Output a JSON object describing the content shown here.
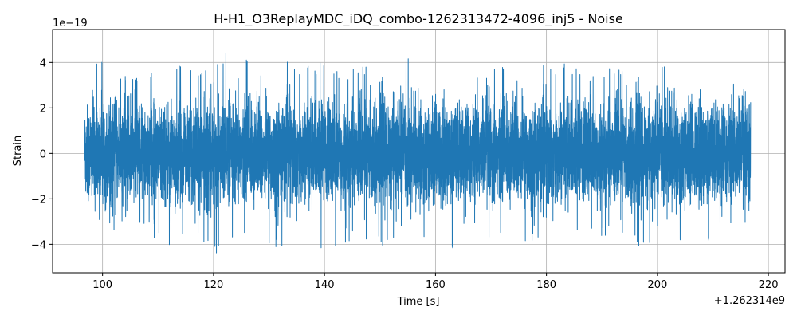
{
  "chart_data": {
    "type": "line",
    "title": "H-H1_O3ReplayMDC_iDQ_combo-1262313472-4096_inj5 - Noise",
    "xlabel": "Time [s]",
    "ylabel": "Strain",
    "x_offset_label": "+1.262314e9",
    "y_scale_label": "1e−19",
    "xlim": [
      91,
      223
    ],
    "ylim": [
      -5.25,
      5.45
    ],
    "x_ticks": [
      100,
      120,
      140,
      160,
      180,
      200,
      220
    ],
    "x_tick_labels": [
      "100",
      "120",
      "140",
      "160",
      "180",
      "200",
      "220"
    ],
    "y_ticks": [
      -4,
      -2,
      0,
      2,
      4
    ],
    "y_tick_labels": [
      "−4",
      "−2",
      "0",
      "2",
      "4"
    ],
    "grid": true,
    "series": [
      {
        "color": "#1f77b4",
        "x_start": 96.8,
        "x_end": 216.8,
        "envelope_x": [
          96.8,
          100,
          104,
          108,
          112,
          116,
          120,
          124,
          128,
          132,
          136,
          140,
          144,
          148,
          152,
          156,
          160,
          164,
          168,
          172,
          176,
          180,
          184,
          188,
          192,
          196,
          200,
          204,
          208,
          212,
          216.8
        ],
        "envelope_max": [
          4.3,
          4.35,
          3.6,
          3.5,
          3.7,
          4.0,
          4.0,
          4.85,
          4.0,
          4.1,
          3.9,
          4.4,
          3.6,
          4.1,
          4.35,
          4.45,
          4.2,
          4.25,
          3.7,
          4.1,
          3.6,
          3.9,
          4.2,
          3.7,
          3.8,
          3.9,
          4.05,
          4.05,
          4.2,
          4.05,
          2.4
        ],
        "envelope_min": [
          -2.9,
          -3.45,
          -3.3,
          -3.5,
          -4.6,
          -3.7,
          -4.7,
          -4.0,
          -3.8,
          -4.4,
          -4.7,
          -4.7,
          -3.9,
          -4.3,
          -3.95,
          -3.7,
          -4.0,
          -4.3,
          -3.8,
          -3.95,
          -4.0,
          -4.0,
          -4.0,
          -3.5,
          -3.8,
          -4.1,
          -4.2,
          -4.0,
          -3.6,
          -4.5,
          -2.8
        ]
      }
    ]
  }
}
